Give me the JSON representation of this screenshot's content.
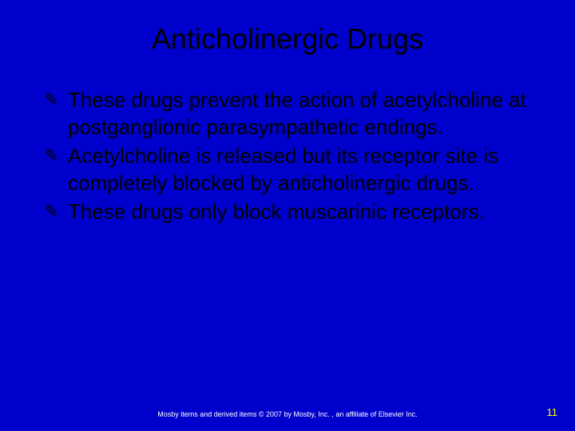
{
  "slide": {
    "title": "Anticholinergic Drugs",
    "bullets": [
      "These drugs prevent the action of acetylcholine at postganglionic parasympathetic endings.",
      "Acetylcholine is released but its receptor site is completely blocked by anticholinergic drugs.",
      "These drugs only block muscarinic receptors."
    ],
    "footer": "Mosby items and derived items © 2007 by Mosby, Inc. , an affiliate of Elsevier Inc.",
    "page_number": "11",
    "colors": {
      "background": "#0000cc",
      "title_text": "#000000",
      "body_text": "#000000",
      "footer_text": "#ffffff",
      "page_number": "#ffff00"
    },
    "typography": {
      "title_fontsize": 36,
      "body_fontsize": 26,
      "footer_fontsize": 9,
      "page_number_fontsize": 13,
      "font_family": "Arial"
    }
  }
}
